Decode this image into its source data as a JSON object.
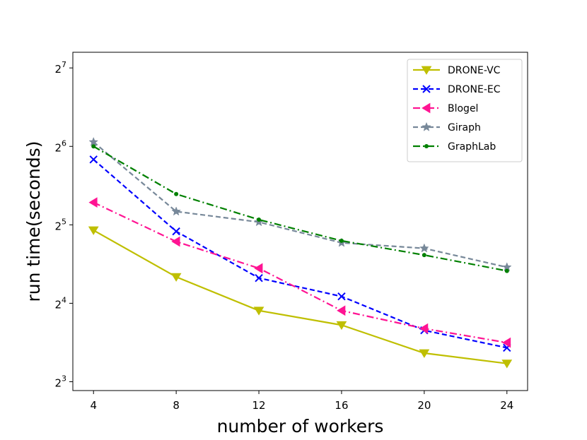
{
  "chart_data": {
    "type": "line",
    "title": "",
    "xlabel": "number of workers",
    "ylabel": "run time(seconds)",
    "x": [
      4,
      8,
      12,
      16,
      20,
      24
    ],
    "x_ticks": [
      "4",
      "8",
      "12",
      "16",
      "20",
      "24"
    ],
    "xlim": [
      3,
      25
    ],
    "y_scale": "log2",
    "ylim": [
      7.4,
      147
    ],
    "y_ticks": [
      {
        "value": 8,
        "base": "2",
        "exp": "3"
      },
      {
        "value": 16,
        "base": "2",
        "exp": "4"
      },
      {
        "value": 32,
        "base": "2",
        "exp": "5"
      },
      {
        "value": 64,
        "base": "2",
        "exp": "6"
      },
      {
        "value": 128,
        "base": "2",
        "exp": "7"
      }
    ],
    "grid": false,
    "legend_position": "top-right",
    "series": [
      {
        "name": "DRONE-VC",
        "color": "#bfbf00",
        "dash": "solid",
        "marker": "triangle-down",
        "values": [
          30.5,
          20.2,
          15.0,
          13.2,
          10.3,
          9.4
        ]
      },
      {
        "name": "DRONE-EC",
        "color": "#0000ff",
        "dash": "dashed",
        "marker": "x",
        "values": [
          57.0,
          30.2,
          20.0,
          17.0,
          12.6,
          10.8
        ]
      },
      {
        "name": "Blogel",
        "color": "#ff1493",
        "dash": "dashdot",
        "marker": "triangle-left",
        "values": [
          39.0,
          27.6,
          21.8,
          15.0,
          12.8,
          11.3
        ]
      },
      {
        "name": "Giraph",
        "color": "#778899",
        "dash": "dashed",
        "marker": "star",
        "values": [
          66.5,
          36.0,
          32.8,
          27.3,
          26.0,
          22.0
        ]
      },
      {
        "name": "GraphLab",
        "color": "#008000",
        "dash": "dashdot",
        "marker": "dot",
        "values": [
          64.0,
          42.0,
          33.5,
          27.8,
          24.5,
          21.3
        ]
      }
    ]
  }
}
